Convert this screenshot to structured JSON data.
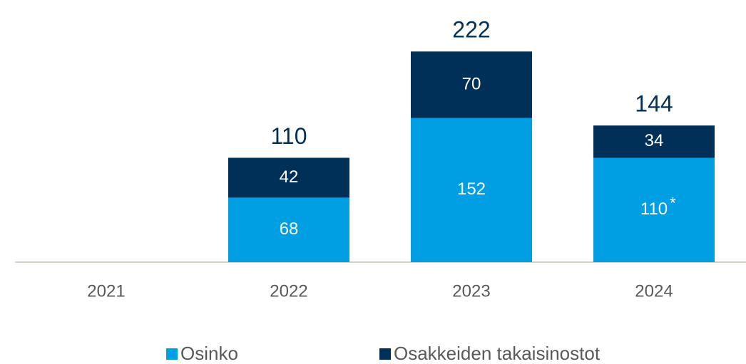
{
  "chart_data": {
    "type": "stacked_bar",
    "categories": [
      "2021",
      "2022",
      "2023",
      "2024"
    ],
    "series": [
      {
        "name": "Osinko",
        "color": "#009fe3",
        "values": [
          null,
          68,
          152,
          110
        ]
      },
      {
        "name": "Osakkeiden takaisinostot",
        "color": "#003057",
        "values": [
          null,
          42,
          70,
          34
        ]
      }
    ],
    "totals": [
      null,
      110,
      222,
      144
    ],
    "note_marker": "*",
    "ylim": [
      0,
      250
    ],
    "legend": "bottom"
  }
}
